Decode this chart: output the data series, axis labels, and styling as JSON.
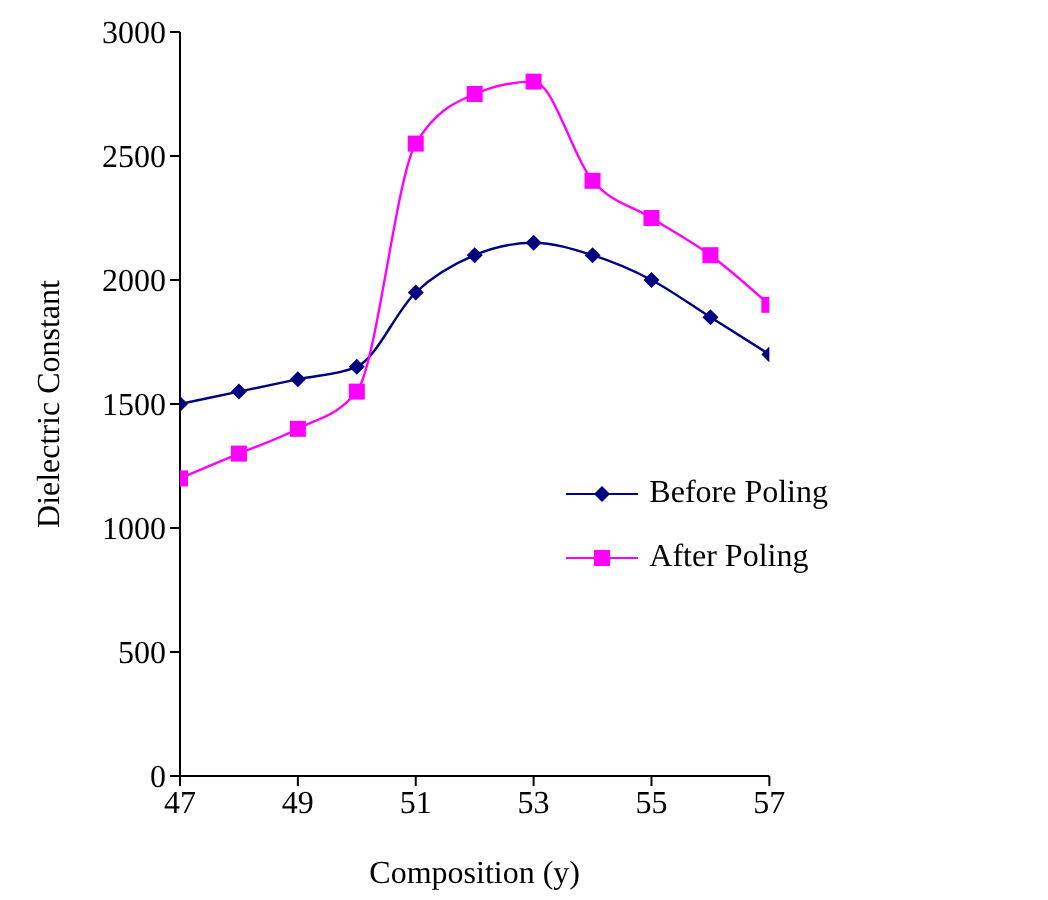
{
  "chart_data": {
    "type": "line",
    "xlabel": "Composition (y)",
    "ylabel": "Dielectric Constant",
    "x": [
      47,
      48,
      49,
      50,
      51,
      52,
      53,
      54,
      55,
      56,
      57
    ],
    "series": [
      {
        "name": "Before Poling",
        "color": "#000080",
        "marker": "diamond",
        "values": [
          1500,
          1550,
          1600,
          1650,
          1950,
          2100,
          2150,
          2100,
          2000,
          1850,
          1700
        ]
      },
      {
        "name": "After Poling",
        "color": "#ff00ff",
        "marker": "square",
        "values": [
          1200,
          1300,
          1400,
          1550,
          2550,
          2750,
          2800,
          2400,
          2250,
          2100,
          1900
        ]
      }
    ],
    "xlim": [
      47,
      57
    ],
    "xticks": [
      47,
      49,
      51,
      53,
      55,
      57
    ],
    "ylim": [
      0,
      3000
    ],
    "yticks": [
      0,
      500,
      1000,
      1500,
      2000,
      2500,
      3000
    ],
    "grid": false,
    "legend": "right"
  }
}
